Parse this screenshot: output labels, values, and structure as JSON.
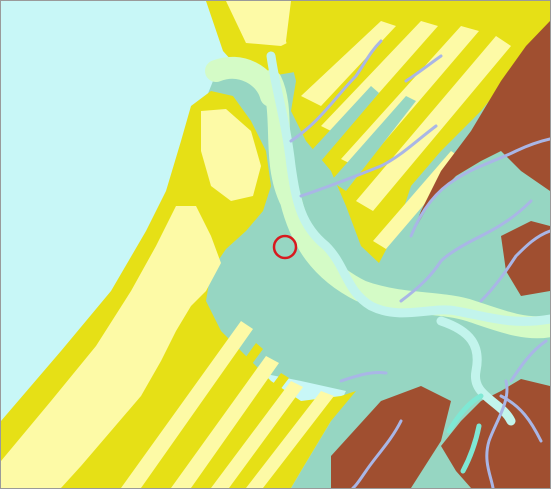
{
  "map": {
    "kind": "geologic map",
    "colors": {
      "sea": "#c8f7f7",
      "plain": "#96d6c2",
      "dune_light": "#fdfaa6",
      "dune_dark": "#e6e016",
      "floodplain": "#d4fbc6",
      "channel": "#c2f4ec",
      "bedrock": "#a04f30",
      "river": "#a9b6e6",
      "tidal_channel": "#7fe8d4",
      "marker": "#d8191e"
    },
    "marker": {
      "shape": "circle",
      "icon": "location-ring-icon"
    }
  }
}
